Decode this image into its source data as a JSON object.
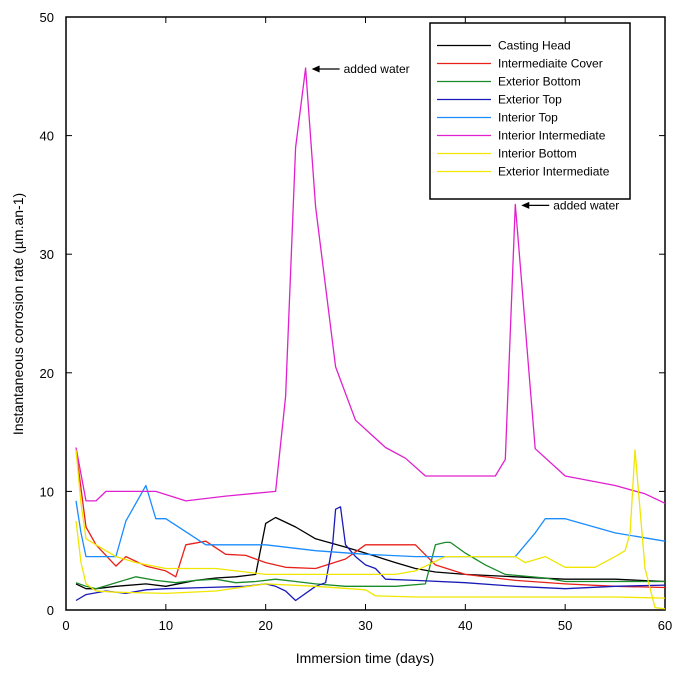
{
  "chart_data": {
    "type": "line",
    "title": "",
    "xlabel": "Immersion time (days)",
    "ylabel": "Instantaneous corrosion rate (µm.an-1)",
    "xlim": [
      0,
      60
    ],
    "ylim": [
      0,
      50
    ],
    "xticks": [
      0,
      10,
      20,
      30,
      40,
      50,
      60
    ],
    "yticks": [
      0,
      10,
      20,
      30,
      40,
      50
    ],
    "grid": false,
    "legend_position": "top-right",
    "series": [
      {
        "name": "Casting Head",
        "color": "#000000",
        "x": [
          1,
          2,
          3,
          5,
          8,
          10,
          13,
          15,
          17,
          19,
          20,
          21,
          23,
          25,
          28,
          30,
          33,
          35,
          37,
          40,
          45,
          50,
          55,
          60
        ],
        "y": [
          2.2,
          1.8,
          1.8,
          2.0,
          2.2,
          2.0,
          2.5,
          2.7,
          2.8,
          3.0,
          7.3,
          7.8,
          7.0,
          6.0,
          5.3,
          4.8,
          4.0,
          3.5,
          3.2,
          3.0,
          2.8,
          2.6,
          2.6,
          2.4
        ]
      },
      {
        "name": "Intermediaite Cover",
        "color": "#e8201a",
        "x": [
          1,
          2,
          3,
          5,
          6,
          8,
          10,
          11,
          12,
          14,
          16,
          18,
          20,
          22,
          25,
          28,
          30,
          32,
          35,
          37,
          40,
          45,
          50,
          55,
          60
        ],
        "y": [
          13.5,
          7.0,
          5.5,
          3.7,
          4.5,
          3.7,
          3.3,
          2.8,
          5.5,
          5.8,
          4.7,
          4.6,
          4.0,
          3.6,
          3.5,
          4.3,
          5.5,
          5.5,
          5.5,
          3.8,
          3.0,
          2.5,
          2.2,
          2.0,
          1.9
        ]
      },
      {
        "name": "Exterior Bottom",
        "color": "#1a8a2a",
        "x": [
          1,
          2,
          3,
          5,
          7,
          9,
          11,
          13,
          15,
          17,
          19,
          21,
          23,
          25,
          28,
          30,
          33,
          36,
          37,
          38,
          38.5,
          40,
          42,
          44,
          48,
          50,
          55,
          60
        ],
        "y": [
          2.3,
          2.0,
          1.8,
          2.3,
          2.8,
          2.5,
          2.3,
          2.5,
          2.6,
          2.3,
          2.4,
          2.6,
          2.4,
          2.2,
          2.0,
          2.0,
          2.0,
          2.2,
          5.5,
          5.7,
          5.7,
          4.8,
          3.8,
          3.0,
          2.7,
          2.4,
          2.4,
          2.4
        ]
      },
      {
        "name": "Exterior Top",
        "color": "#1a1ab8",
        "x": [
          1,
          2,
          4,
          6,
          8,
          10,
          14,
          18,
          20,
          21,
          22,
          23,
          25,
          26,
          26.7,
          27,
          27.5,
          28,
          29,
          30,
          31,
          32,
          35,
          40,
          45,
          50,
          55,
          60
        ],
        "y": [
          0.8,
          1.3,
          1.6,
          1.4,
          1.7,
          1.8,
          1.9,
          2.0,
          2.2,
          2.0,
          1.6,
          0.8,
          2.0,
          2.3,
          5.5,
          8.5,
          8.7,
          5.5,
          4.5,
          3.8,
          3.5,
          2.6,
          2.5,
          2.3,
          2.0,
          1.8,
          2.0,
          2.1
        ]
      },
      {
        "name": "Interior Top",
        "color": "#1a8cff",
        "x": [
          1,
          1.5,
          2,
          3,
          5,
          6,
          8,
          9,
          10,
          14,
          20,
          25,
          30,
          35,
          40,
          45,
          46,
          47,
          48,
          50,
          55,
          60
        ],
        "y": [
          9.2,
          6.5,
          4.5,
          4.5,
          4.5,
          7.5,
          10.5,
          7.7,
          7.7,
          5.5,
          5.5,
          5.0,
          4.7,
          4.5,
          4.5,
          4.5,
          5.5,
          6.5,
          7.7,
          7.7,
          6.5,
          5.8
        ]
      },
      {
        "name": "Interior Intermediate",
        "color": "#e020d0",
        "x": [
          1,
          2,
          3,
          4,
          5,
          7,
          9,
          12,
          16,
          21,
          22,
          23,
          24,
          25,
          27,
          29,
          32,
          34,
          36,
          40,
          43,
          44,
          45,
          47,
          50,
          55,
          58,
          60
        ],
        "y": [
          13.7,
          9.2,
          9.2,
          10.0,
          10.0,
          10.0,
          10.0,
          9.2,
          9.6,
          10.0,
          18.0,
          39.0,
          45.7,
          34.0,
          20.5,
          16.0,
          13.7,
          12.8,
          11.3,
          11.3,
          11.3,
          12.7,
          34.2,
          13.6,
          11.3,
          10.5,
          9.8,
          9.0
        ]
      },
      {
        "name": "Interior Bottom",
        "color": "#f0e600",
        "x": [
          1,
          1.5,
          2,
          3,
          5,
          7,
          10,
          15,
          20,
          25,
          30,
          33,
          35,
          38,
          40,
          45,
          46,
          48,
          50,
          53,
          55,
          56,
          56.5,
          57,
          57.5,
          58,
          59,
          60
        ],
        "y": [
          13.5,
          9.0,
          6.0,
          5.5,
          4.5,
          4.0,
          3.5,
          3.5,
          3.0,
          3.0,
          3.0,
          3.0,
          3.3,
          4.5,
          4.5,
          4.5,
          4.0,
          4.5,
          3.6,
          3.6,
          4.5,
          5.0,
          6.5,
          13.5,
          8.5,
          3.5,
          0.2,
          0.1
        ]
      },
      {
        "name": "Exterior Intermediate",
        "color": "#f0e600",
        "x": [
          1,
          1.5,
          2,
          3,
          5,
          10,
          15,
          20,
          25,
          30,
          31,
          35,
          40,
          45,
          50,
          55,
          60
        ],
        "y": [
          7.5,
          4.0,
          2.2,
          1.6,
          1.5,
          1.4,
          1.6,
          2.2,
          2.0,
          1.7,
          1.2,
          1.1,
          1.1,
          1.1,
          1.1,
          1.1,
          1.0
        ]
      }
    ],
    "annotations": [
      {
        "text": "added water",
        "x": 24.2,
        "y": 45.7
      },
      {
        "text": "added water",
        "x": 45.2,
        "y": 34.2
      }
    ]
  }
}
